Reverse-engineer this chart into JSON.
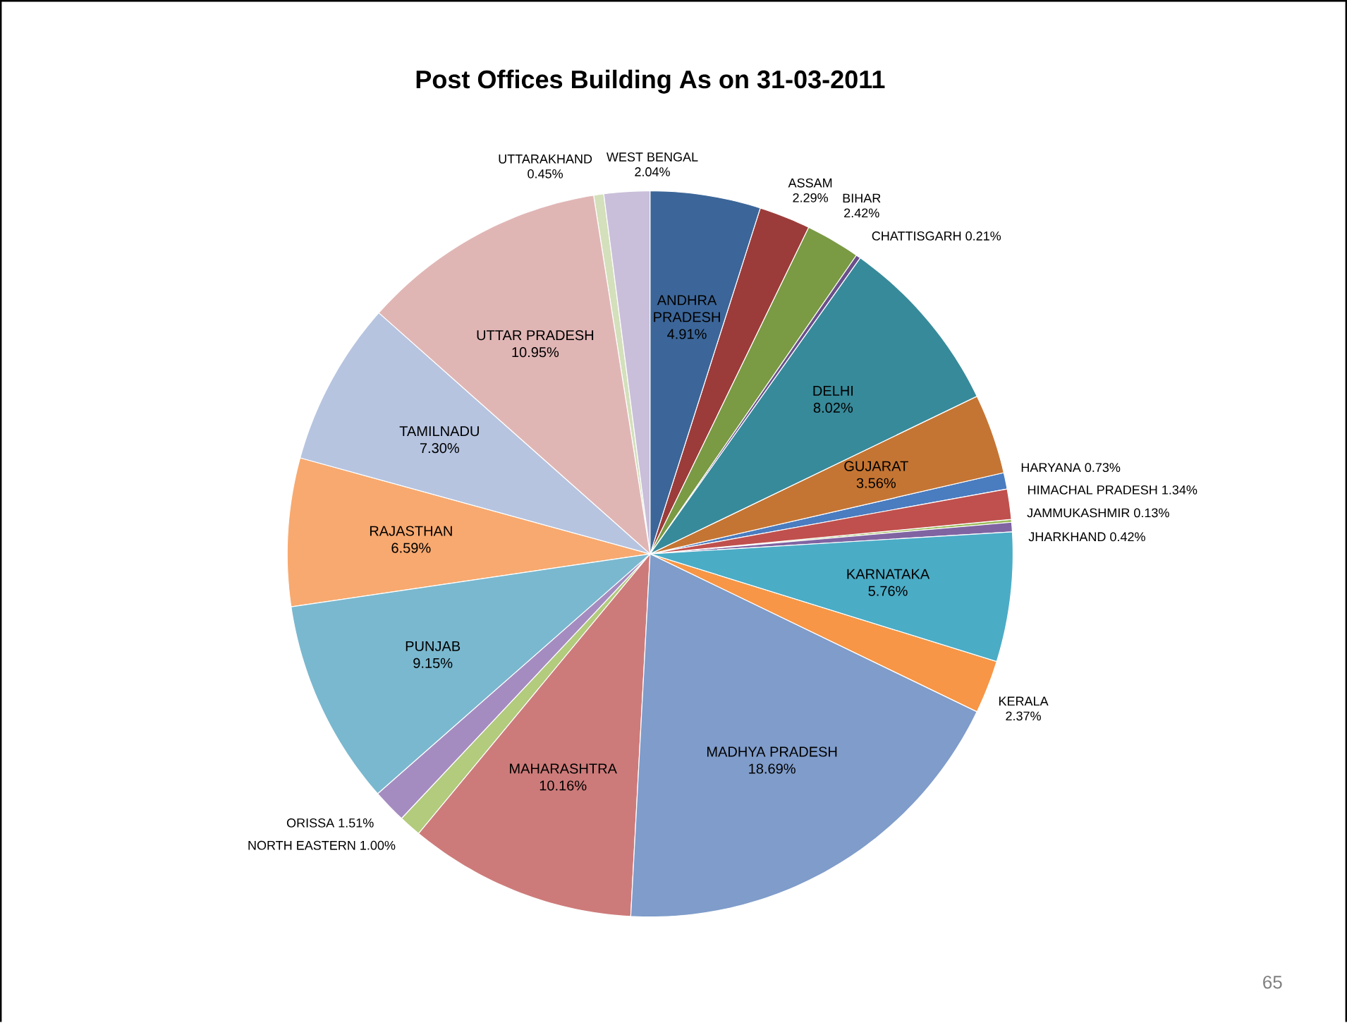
{
  "chart_data": {
    "type": "pie",
    "title": "Post Offices Building  As on 31-03-2011",
    "categories": [
      "ANDHRA PRADESH",
      "ASSAM",
      "BIHAR",
      "CHATTISGARH",
      "DELHI",
      "GUJARAT",
      "HARYANA",
      "HIMACHAL PRADESH",
      "JAMMUKASHMIR",
      "JHARKHAND",
      "KARNATAKA",
      "KERALA",
      "MADHYA PRADESH",
      "MAHARASHTRA",
      "NORTH EASTERN",
      "ORISSA",
      "PUNJAB",
      "RAJASTHAN",
      "TAMILNADU",
      "UTTAR PRADESH",
      "UTTARAKHAND",
      "WEST BENGAL"
    ],
    "values": [
      4.91,
      2.29,
      2.42,
      0.21,
      8.02,
      3.56,
      0.73,
      1.34,
      0.13,
      0.42,
      5.76,
      2.37,
      18.69,
      10.16,
      1.0,
      1.51,
      9.15,
      6.59,
      7.3,
      10.95,
      0.45,
      2.04
    ],
    "value_labels": [
      "4.91%",
      "2.29%",
      "2.42%",
      "0.21%",
      "8.02%",
      "3.56%",
      "0.73%",
      "1.34%",
      "0.13%",
      "0.42%",
      "5.76%",
      "2.37%",
      "18.69%",
      "10.16%",
      "1.00%",
      "1.51%",
      "9.15%",
      "6.59%",
      "7.30%",
      "10.95%",
      "0.45%",
      "2.04%"
    ],
    "colors": [
      "#3c6699",
      "#9c3c3a",
      "#7a9a44",
      "#6a4f8a",
      "#378a9a",
      "#c57533",
      "#4a7cc0",
      "#c0504d",
      "#9bbb59",
      "#8064a2",
      "#4bacc6",
      "#f79646",
      "#7f9cca",
      "#cd7b7a",
      "#b2cb7d",
      "#a58cc0",
      "#7ab8cf",
      "#f8a96f",
      "#b6c4e0",
      "#e0b6b5",
      "#d3e0bb",
      "#c9bfda"
    ],
    "annotations": [
      "65"
    ]
  }
}
